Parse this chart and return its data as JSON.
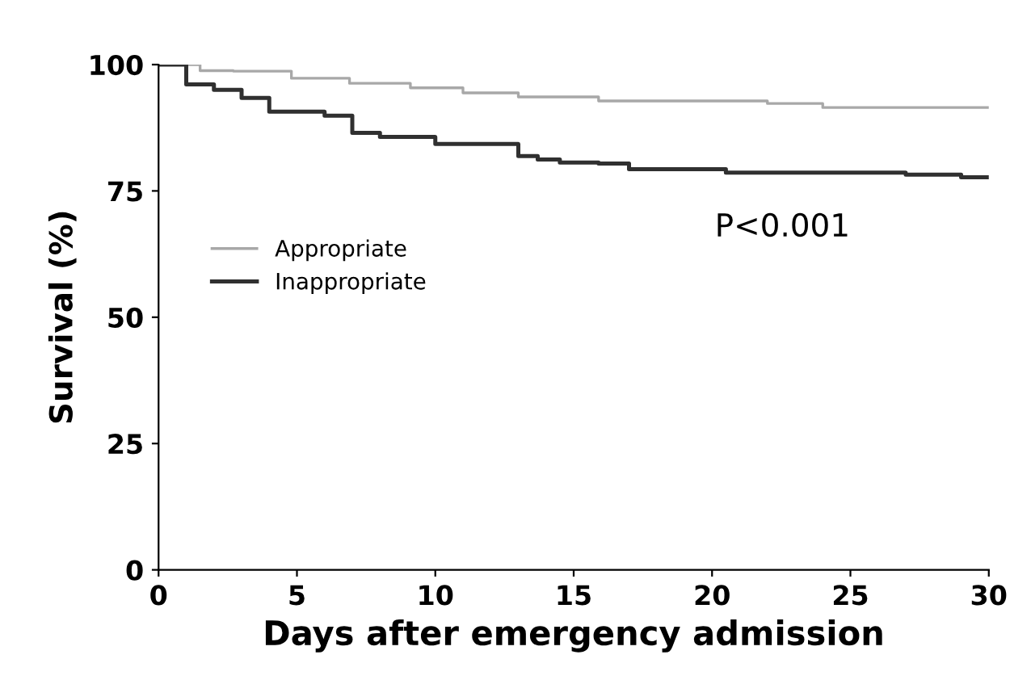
{
  "chart_data": {
    "type": "step",
    "xlabel": "Days after emergency admission",
    "ylabel": "Survival (%)",
    "xlim": [
      0,
      30
    ],
    "ylim": [
      0,
      100
    ],
    "xticks": [
      0,
      5,
      10,
      15,
      20,
      25,
      30
    ],
    "yticks": [
      0,
      25,
      50,
      75,
      100
    ],
    "grid": false,
    "legend": "center left",
    "annotations": [
      "P<0.001"
    ],
    "series": [
      {
        "name": "Appropriate",
        "color": "#a8a8a8",
        "x": [
          0,
          1,
          1.5,
          2.7,
          4.8,
          6.9,
          9.1,
          11,
          13,
          15.9,
          22,
          24,
          30
        ],
        "values": [
          100,
          100,
          98.8,
          98.7,
          97.3,
          96.3,
          95.4,
          94.4,
          93.6,
          92.8,
          92.3,
          91.5,
          91.5
        ]
      },
      {
        "name": "Inappropriate",
        "color": "#303030",
        "x": [
          0,
          1,
          2,
          3,
          4,
          6,
          7,
          8,
          10,
          13,
          13.7,
          14.5,
          15.9,
          17,
          20.5,
          27,
          29,
          30
        ],
        "values": [
          100,
          96.1,
          95.0,
          93.4,
          90.7,
          89.9,
          86.5,
          85.7,
          84.3,
          81.9,
          81.2,
          80.6,
          80.4,
          79.3,
          78.6,
          78.2,
          77.7,
          77.7
        ]
      }
    ]
  }
}
